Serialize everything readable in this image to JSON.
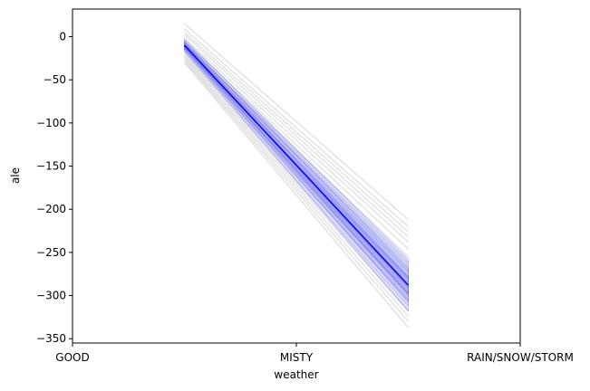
{
  "chart_data": {
    "type": "line",
    "title": "",
    "xlabel": "weather",
    "ylabel": "ale",
    "categories": [
      "GOOD",
      "MISTY",
      "RAIN/SNOW/STORM"
    ],
    "x_axis_range": [
      0,
      2
    ],
    "ylim": [
      -355,
      32
    ],
    "yticks": [
      0,
      -50,
      -100,
      -150,
      -200,
      -250,
      -300,
      -350
    ],
    "grid": false,
    "legend": "none",
    "segment_x": [
      0.5,
      1.5
    ],
    "mean_line": {
      "color": "#0000ff",
      "y": [
        -10,
        -288
      ]
    },
    "band": {
      "color": "#0000ff",
      "y_lower": [
        -17,
        -318
      ],
      "y_upper": [
        -3,
        -258
      ]
    },
    "samples": {
      "color": "#b0b0b0",
      "lines": [
        [
          15,
          -212
        ],
        [
          9,
          -220
        ],
        [
          5,
          -226
        ],
        [
          2,
          -232
        ],
        [
          -2,
          -238
        ],
        [
          -5,
          -246
        ],
        [
          -8,
          -255
        ],
        [
          -10,
          -265
        ],
        [
          -12,
          -272
        ],
        [
          -14,
          -280
        ],
        [
          -16,
          -290
        ],
        [
          -18,
          -298
        ],
        [
          -20,
          -305
        ],
        [
          -22,
          -312
        ],
        [
          -24,
          -318
        ],
        [
          -26,
          -324
        ],
        [
          -28,
          -330
        ],
        [
          -30,
          -337
        ],
        [
          -7,
          -262
        ],
        [
          -13,
          -300
        ]
      ]
    }
  }
}
